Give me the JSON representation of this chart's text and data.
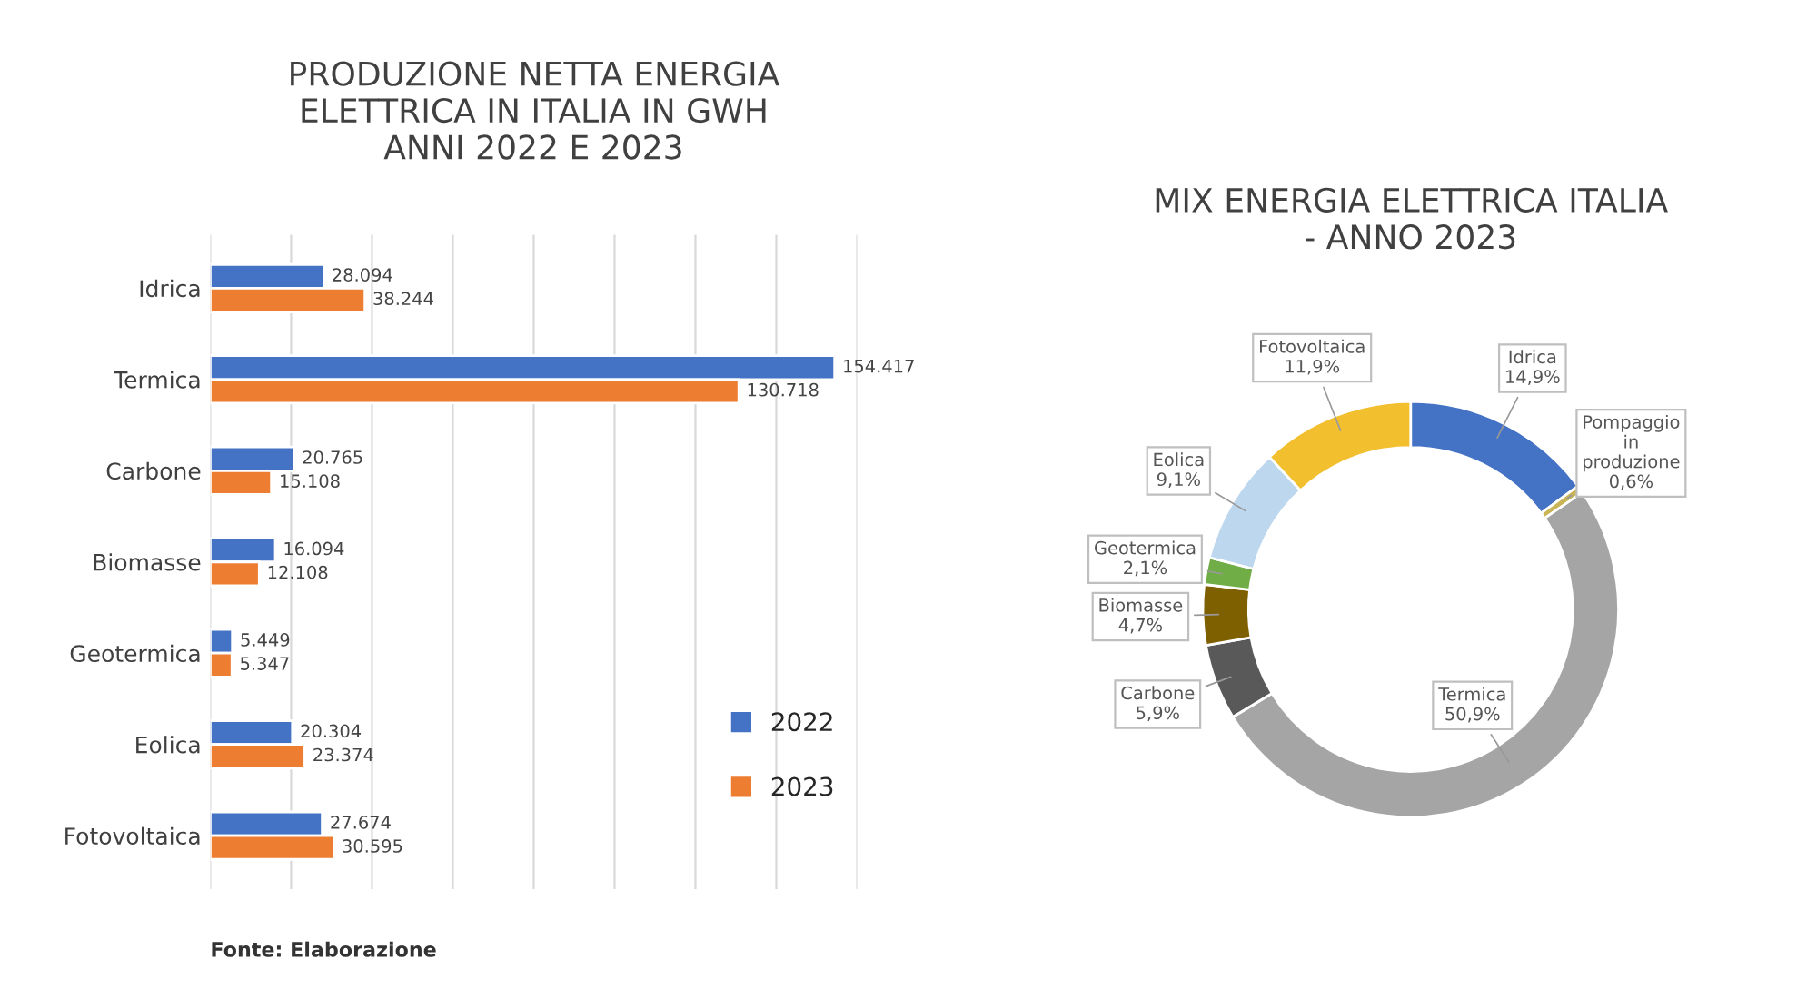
{
  "chart_data": [
    {
      "type": "bar",
      "orientation": "horizontal",
      "title": "PRODUZIONE NETTA ENERGIA\nELETTRICA IN ITALIA IN GWH\nANNI 2022 E 2023",
      "categories": [
        "Idrica",
        "Termica",
        "Carbone",
        "Biomasse",
        "Geotermica",
        "Eolica",
        "Fotovoltaica"
      ],
      "series": [
        {
          "name": "2022",
          "color": "#4472c4",
          "values": [
            28094,
            154417,
            20765,
            16094,
            5449,
            20304,
            27674
          ],
          "value_labels": [
            "28.094",
            "154.417",
            "20.765",
            "16.094",
            "5.449",
            "20.304",
            "27.674"
          ]
        },
        {
          "name": "2023",
          "color": "#ed7d31",
          "values": [
            38244,
            130718,
            15108,
            12108,
            5347,
            23374,
            30595
          ],
          "value_labels": [
            "38.244",
            "130.718",
            "15.108",
            "12.108",
            "5.347",
            "23.374",
            "30.595"
          ]
        }
      ],
      "xlim": [
        0,
        160000
      ],
      "xticks": [
        {
          "value": 0,
          "label": null
        },
        {
          "value": 20000,
          "label": null
        },
        {
          "value": 40000,
          "label": null
        },
        {
          "value": 60000,
          "label": null
        },
        {
          "value": 80000,
          "label": null
        },
        {
          "value": 100000,
          "label": null
        },
        {
          "value": 120000,
          "label": null
        },
        {
          "value": 140000,
          "label": null
        },
        {
          "value": 160000,
          "label": null
        }
      ],
      "grid": "x",
      "legend": "bottom right",
      "tick_labels": "y",
      "annotations": [
        "Fonte: Elaborazione"
      ]
    },
    {
      "type": "donut",
      "title": "MIX ENERGIA ELETTRICA ITALIA\n- ANNO 2023",
      "categories": [
        "Idrica",
        "Pompaggio in produzione",
        "Termica",
        "Carbone",
        "Biomasse",
        "Geotermica",
        "Eolica",
        "Fotovoltaica"
      ],
      "values": [
        14.9,
        0.6,
        50.9,
        5.9,
        4.7,
        2.1,
        9.1,
        11.9
      ],
      "value_labels": [
        "14,9%",
        "0,6%",
        "50,9%",
        "5,9%",
        "4,7%",
        "2,1%",
        "9,1%",
        "11,9%"
      ],
      "colors": [
        "#4472c4",
        "#c9b458",
        "#a5a5a5",
        "#595959",
        "#7f6000",
        "#70ad47",
        "#bdd7ee",
        "#f2bf2f"
      ]
    }
  ]
}
